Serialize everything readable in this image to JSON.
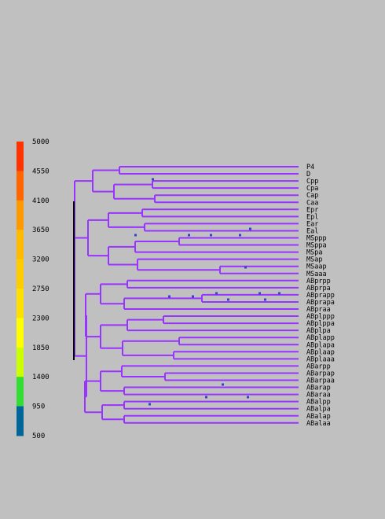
{
  "scale": {
    "labels": [
      "5000",
      "4550",
      "4100",
      "3650",
      "3200",
      "2750",
      "2300",
      "1850",
      "1400",
      "950",
      "500"
    ],
    "colors": [
      "#ff3300",
      "#ff6600",
      "#ff9900",
      "#ffbb00",
      "#ffcc00",
      "#ffe000",
      "#ffff00",
      "#ccff00",
      "#33dd33",
      "#006699",
      "#9933ff"
    ]
  },
  "tree": {
    "branch_color": "#9933ff",
    "leaves": [
      "P4",
      "D",
      "Cpp",
      "Cpa",
      "Cap",
      "Caa",
      "Epr",
      "Epl",
      "Ear",
      "Eal",
      "MSppp",
      "MSppa",
      "MSpa",
      "MSap",
      "MSaap",
      "MSaaa",
      "ABprpp",
      "ABprpa",
      "ABprapp",
      "ABprapa",
      "ABpraa",
      "ABplppp",
      "ABplppa",
      "ABplpa",
      "ABplapp",
      "ABplapa",
      "ABplaap",
      "ABplaaa",
      "ABarpp",
      "ABarpap",
      "ABarpaa",
      "ABarap",
      "ABaraa",
      "ABalpp",
      "ABalpa",
      "ABalap",
      "ABalaa"
    ]
  }
}
